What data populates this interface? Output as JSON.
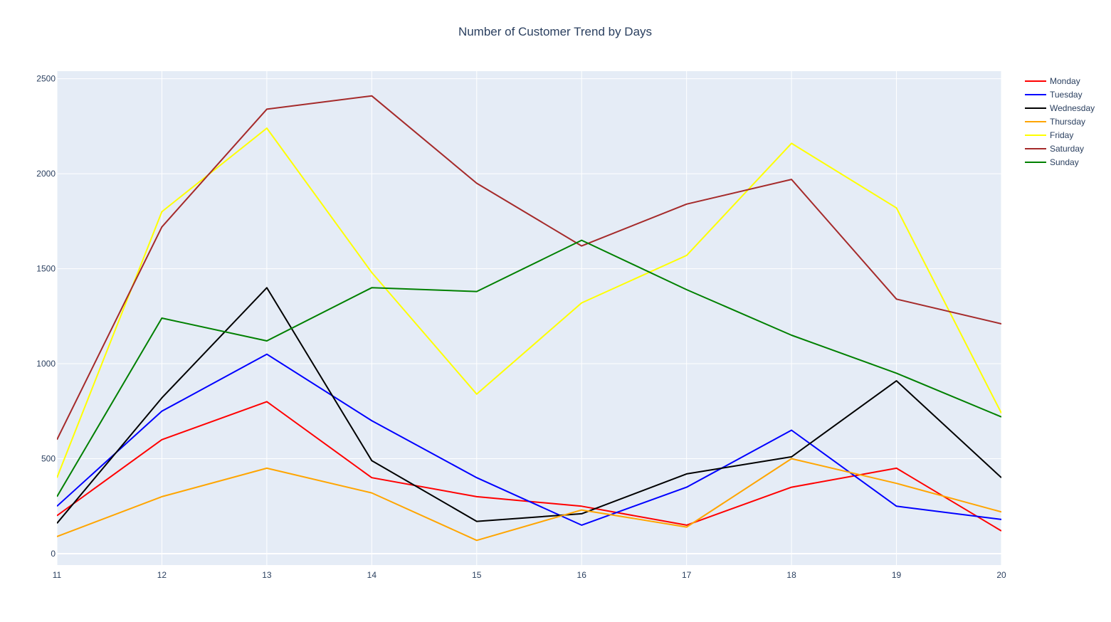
{
  "chart_data": {
    "type": "line",
    "title": "Number of Customer Trend by Days",
    "xlabel": "",
    "ylabel": "",
    "x": [
      11,
      12,
      13,
      14,
      15,
      16,
      17,
      18,
      19,
      20
    ],
    "xlim": [
      11,
      20
    ],
    "ylim": [
      -60,
      2540
    ],
    "y_ticks": [
      0,
      500,
      1000,
      1500,
      2000,
      2500
    ],
    "grid": true,
    "legend_position": "top-right",
    "series": [
      {
        "name": "Monday",
        "color": "#ff0000",
        "values": [
          200,
          600,
          800,
          400,
          300,
          250,
          150,
          350,
          450,
          120
        ]
      },
      {
        "name": "Tuesday",
        "color": "#0000ff",
        "values": [
          250,
          750,
          1050,
          700,
          400,
          150,
          350,
          650,
          250,
          180
        ]
      },
      {
        "name": "Wednesday",
        "color": "#000000",
        "values": [
          160,
          820,
          1400,
          490,
          170,
          210,
          420,
          510,
          910,
          400
        ]
      },
      {
        "name": "Thursday",
        "color": "#ffa500",
        "values": [
          90,
          300,
          450,
          320,
          70,
          230,
          140,
          500,
          370,
          220
        ]
      },
      {
        "name": "Friday",
        "color": "#ffff00",
        "values": [
          400,
          1800,
          2240,
          1480,
          840,
          1320,
          1570,
          2160,
          1820,
          740
        ]
      },
      {
        "name": "Saturday",
        "color": "#a52a2a",
        "values": [
          600,
          1720,
          2340,
          2410,
          1950,
          1620,
          1840,
          1970,
          1340,
          1210
        ]
      },
      {
        "name": "Sunday",
        "color": "#008000",
        "values": [
          300,
          1240,
          1120,
          1400,
          1380,
          1650,
          1390,
          1150,
          950,
          720
        ]
      }
    ]
  }
}
